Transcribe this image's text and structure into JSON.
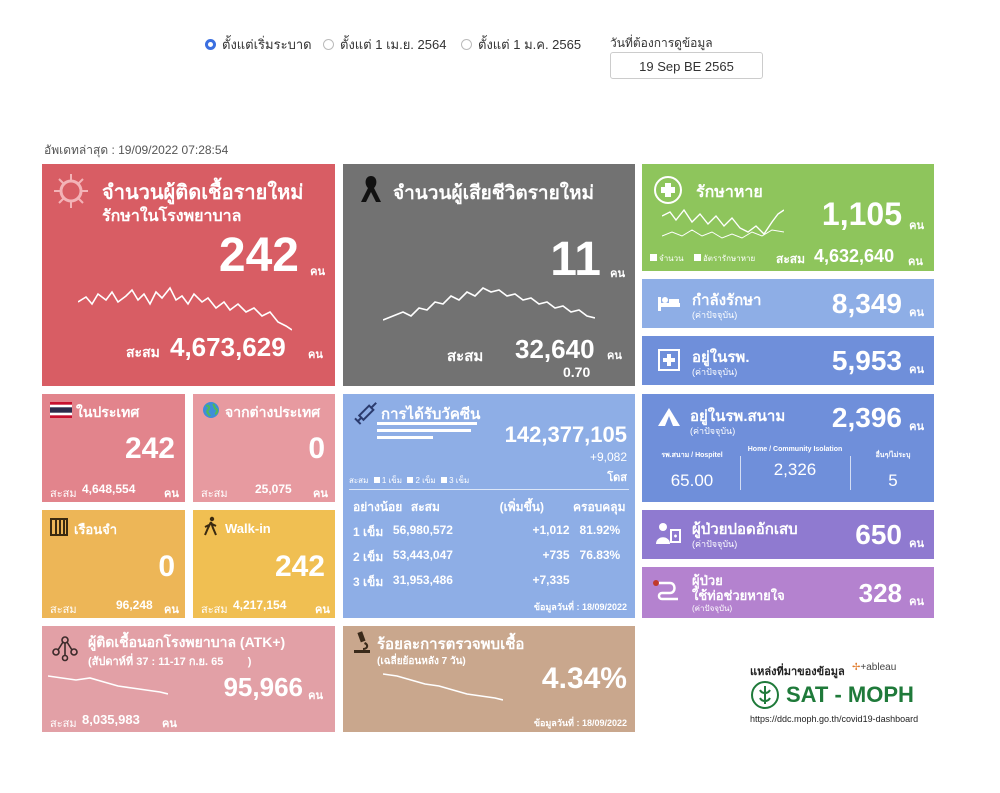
{
  "filters": {
    "options": [
      "ตั้งแต่เริ่มระบาด",
      "ตั้งแต่ 1 เม.ย. 2564",
      "ตั้งแต่ 1 ม.ค. 2565"
    ],
    "selected_index": 0,
    "date_label": "วันที่ต้องการดูข้อมูล",
    "date_value": "19 Sep BE 2565"
  },
  "updated": "อัพเดทล่าสุด : 19/09/2022 07:28:54",
  "colors": {
    "red": "#d85d64",
    "gray": "#727272",
    "green": "#8ec55c",
    "blue_light": "#8eaee6",
    "blue": "#6f8fda",
    "pink": "#e79aa0",
    "orange": "#edb657",
    "purple": "#8f7ad0",
    "violet": "#b482cf",
    "tan": "#c9a78d",
    "rose": "#e2a0a6"
  },
  "new_cases": {
    "title": "จำนวนผู้ติดเชื้อรายใหม่",
    "subtitle": "รักษาในโรงพยาบาล",
    "value": "242",
    "unit": "คน",
    "cum_label": "สะสม",
    "cum_value": "4,673,629",
    "cum_unit": "คน"
  },
  "deaths": {
    "title": "จำนวนผู้เสียชีวิตรายใหม่",
    "value": "11",
    "unit": "คน",
    "cum_label": "สะสม",
    "cum_value": "32,640",
    "cum_unit": "คน",
    "rate": "0.70"
  },
  "recovered": {
    "title": "รักษาหาย",
    "value": "1,105",
    "unit": "คน",
    "legend1": "จำนวน",
    "legend2": "อัตรารักษาหาย",
    "cum_label": "สะสม",
    "cum_value": "4,632,640",
    "cum_unit": "คน"
  },
  "treating": {
    "title": "กำลังรักษา",
    "note": "(ค่าปัจจุบัน)",
    "value": "8,349",
    "unit": "คน"
  },
  "in_hospital": {
    "title": "อยู่ในรพ.",
    "note": "(ค่าปัจจุบัน)",
    "value": "5,953",
    "unit": "คน"
  },
  "field_hospital": {
    "title": "อยู่ในรพ.สนาม",
    "note": "(ค่าปัจจุบัน)",
    "value": "2,396",
    "unit": "คน",
    "cols": [
      {
        "label": "รพ.สนาม / Hospitel",
        "value": "65.00"
      },
      {
        "label": "Home / Community Isolation",
        "value": "2,326"
      },
      {
        "label": "อื่นๆ/ไม่ระบุ",
        "value": "5"
      }
    ]
  },
  "pneumonia": {
    "title": "ผู้ป่วยปอดอักเสบ",
    "note": "(ค่าปัจจุบัน)",
    "value": "650",
    "unit": "คน"
  },
  "ventilator": {
    "title1": "ผู้ป่วย",
    "title2": "ใช้ท่อช่วยหายใจ",
    "note": "(ค่าปัจจุบัน)",
    "value": "328",
    "unit": "คน"
  },
  "domestic": {
    "title": "ในประเทศ",
    "value": "242",
    "cum_label": "สะสม",
    "cum_value": "4,648,554",
    "cum_unit": "คน"
  },
  "abroad": {
    "title": "จากต่างประเทศ",
    "value": "0",
    "cum_label": "สะสม",
    "cum_value": "25,075",
    "cum_unit": "คน"
  },
  "prison": {
    "title": "เรือนจำ",
    "value": "0",
    "cum_label": "สะสม",
    "cum_value": "96,248",
    "cum_unit": "คน"
  },
  "walkin": {
    "title": "Walk-in",
    "value": "242",
    "cum_label": "สะสม",
    "cum_value": "4,217,154",
    "cum_unit": "คน"
  },
  "vaccine": {
    "title": "การได้รับวัคซีน",
    "total": "142,377,105",
    "increase": "+9,082",
    "dose_unit": "โดส",
    "legend": {
      "label": "สะสม",
      "d1": "1 เข็ม",
      "d2": "2 เข็ม",
      "d3": "3 เข็ม"
    },
    "headers": [
      "อย่างน้อย",
      "สะสม",
      "(เพิ่มขึ้น)",
      "ครอบคลุม"
    ],
    "rows": [
      {
        "dose": "1 เข็ม",
        "cum": "56,980,572",
        "inc": "+1,012",
        "cov": "81.92%"
      },
      {
        "dose": "2 เข็ม",
        "cum": "53,443,047",
        "inc": "+735",
        "cov": "76.83%"
      },
      {
        "dose": "3 เข็ม",
        "cum": "31,953,486",
        "inc": "+7,335",
        "cov": ""
      }
    ],
    "data_date": "ข้อมูลวันที่ : 18/09/2022"
  },
  "atk": {
    "title": "ผู้ติดเชื้อนอกโรงพยาบาล (ATK+)",
    "week": "(สัปดาห์ที่ 37 : 11-17 ก.ย. 65        )",
    "value": "95,966",
    "unit": "คน",
    "cum_label": "สะสม",
    "cum_value": "8,035,983",
    "cum_unit": "คน"
  },
  "positivity": {
    "title": "ร้อยละการตรวจพบเชื้อ",
    "sub": "(เฉลี่ยย้อนหลัง 7 วัน)",
    "value": "4.34%",
    "data_date": "ข้อมูลวันที่ : 18/09/2022"
  },
  "source": {
    "label": "แหล่งที่มาของข้อมูล",
    "tableau": "+ableau",
    "brand": "SAT - MOPH",
    "url": "https://ddc.moph.go.th/covid19-dashboard"
  }
}
